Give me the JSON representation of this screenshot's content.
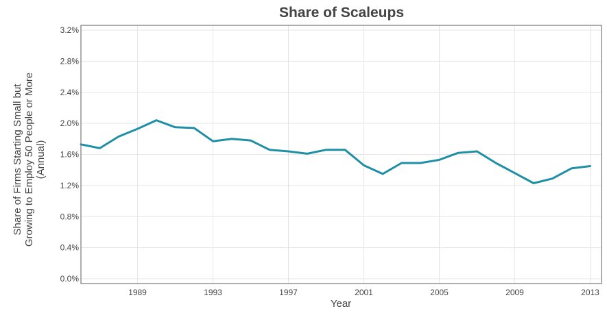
{
  "chart_data": {
    "type": "line",
    "title": "Share of Scaleups",
    "xlabel": "Year",
    "ylabel": [
      "Share of Firms Starting Small but",
      "Growing to Employ 50 People or More",
      "(Annual)"
    ],
    "xlim": [
      1986,
      2013.6
    ],
    "ylim": [
      0,
      3.2
    ],
    "x_ticks": [
      1989,
      1993,
      1997,
      2001,
      2005,
      2009,
      2013
    ],
    "y_ticks": [
      0,
      0.4,
      0.8,
      1.2,
      1.6,
      2.0,
      2.4,
      2.8,
      3.2
    ],
    "y_tick_labels": [
      "0.0%",
      "0.4%",
      "0.8%",
      "1.2%",
      "1.6%",
      "2.0%",
      "2.4%",
      "2.8%",
      "3.2%"
    ],
    "grid": true,
    "series": [
      {
        "color": "#1f8fa6",
        "x": [
          1986,
          1987,
          1988,
          1989,
          1990,
          1991,
          1992,
          1993,
          1994,
          1995,
          1996,
          1997,
          1998,
          1999,
          2000,
          2001,
          2002,
          2003,
          2004,
          2005,
          2006,
          2007,
          2008,
          2009,
          2010,
          2011,
          2012,
          2013
        ],
        "values": [
          1.73,
          1.68,
          1.83,
          1.93,
          2.04,
          1.95,
          1.94,
          1.77,
          1.8,
          1.78,
          1.66,
          1.64,
          1.61,
          1.66,
          1.66,
          1.46,
          1.35,
          1.49,
          1.49,
          1.53,
          1.62,
          1.64,
          1.49,
          1.36,
          1.23,
          1.29,
          1.42,
          1.45
        ]
      }
    ]
  }
}
